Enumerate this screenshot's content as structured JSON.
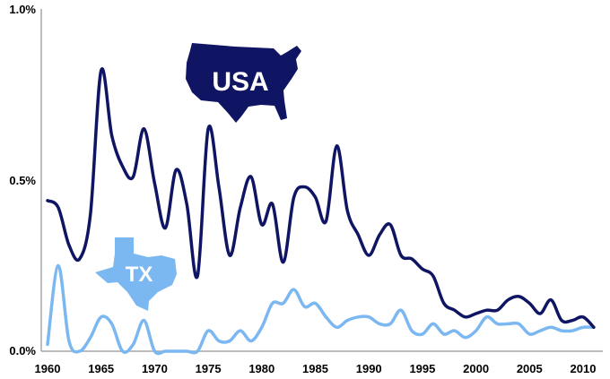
{
  "chart_data": {
    "type": "line",
    "title": "",
    "xlabel": "",
    "ylabel": "",
    "xlim": [
      1960,
      2011
    ],
    "ylim": [
      0,
      1.0
    ],
    "grid": false,
    "y_ticks": [
      {
        "value": 0,
        "label": "0.0%"
      },
      {
        "value": 0.5,
        "label": "0.5%"
      },
      {
        "value": 1.0,
        "label": "1.0%"
      }
    ],
    "x_ticks": [
      {
        "value": 1960,
        "label": "1960"
      },
      {
        "value": 1965,
        "label": "1965"
      },
      {
        "value": 1970,
        "label": "1970"
      },
      {
        "value": 1975,
        "label": "1975"
      },
      {
        "value": 1980,
        "label": "1980"
      },
      {
        "value": 1985,
        "label": "1985"
      },
      {
        "value": 1990,
        "label": "1990"
      },
      {
        "value": 1995,
        "label": "1995"
      },
      {
        "value": 2000,
        "label": "2000"
      },
      {
        "value": 2005,
        "label": "2005"
      },
      {
        "value": 2010,
        "label": "2010"
      }
    ],
    "series": [
      {
        "name": "USA",
        "color": "#0f1563",
        "x": [
          1960,
          1961,
          1962,
          1963,
          1964,
          1965,
          1966,
          1967,
          1968,
          1969,
          1970,
          1971,
          1972,
          1973,
          1974,
          1975,
          1976,
          1977,
          1978,
          1979,
          1980,
          1981,
          1982,
          1983,
          1984,
          1985,
          1986,
          1987,
          1988,
          1989,
          1990,
          1991,
          1992,
          1993,
          1994,
          1995,
          1996,
          1997,
          1998,
          1999,
          2000,
          2001,
          2002,
          2003,
          2004,
          2005,
          2006,
          2007,
          2008,
          2009,
          2010,
          2011
        ],
        "values": [
          0.44,
          0.42,
          0.31,
          0.27,
          0.4,
          0.82,
          0.63,
          0.54,
          0.51,
          0.65,
          0.49,
          0.36,
          0.53,
          0.43,
          0.22,
          0.65,
          0.48,
          0.28,
          0.42,
          0.51,
          0.37,
          0.43,
          0.26,
          0.45,
          0.48,
          0.45,
          0.38,
          0.6,
          0.41,
          0.34,
          0.28,
          0.34,
          0.37,
          0.28,
          0.27,
          0.24,
          0.22,
          0.14,
          0.12,
          0.1,
          0.11,
          0.12,
          0.12,
          0.15,
          0.16,
          0.14,
          0.11,
          0.15,
          0.09,
          0.09,
          0.1,
          0.07
        ]
      },
      {
        "name": "TX",
        "color": "#7bb7f0",
        "x": [
          1960,
          1961,
          1962,
          1963,
          1964,
          1965,
          1966,
          1967,
          1968,
          1969,
          1970,
          1971,
          1972,
          1973,
          1974,
          1975,
          1976,
          1977,
          1978,
          1979,
          1980,
          1981,
          1982,
          1983,
          1984,
          1985,
          1986,
          1987,
          1988,
          1989,
          1990,
          1991,
          1992,
          1993,
          1994,
          1995,
          1996,
          1997,
          1998,
          1999,
          2000,
          2001,
          2002,
          2003,
          2004,
          2005,
          2006,
          2007,
          2008,
          2009,
          2010,
          2011
        ],
        "values": [
          0.02,
          0.25,
          0.03,
          0.0,
          0.04,
          0.1,
          0.08,
          0.0,
          0.02,
          0.09,
          0.0,
          0.0,
          0.0,
          0.0,
          0.0,
          0.06,
          0.03,
          0.03,
          0.06,
          0.03,
          0.07,
          0.14,
          0.14,
          0.18,
          0.13,
          0.14,
          0.1,
          0.07,
          0.09,
          0.1,
          0.1,
          0.08,
          0.08,
          0.12,
          0.06,
          0.05,
          0.08,
          0.05,
          0.06,
          0.04,
          0.06,
          0.1,
          0.08,
          0.08,
          0.08,
          0.05,
          0.06,
          0.07,
          0.06,
          0.06,
          0.07,
          0.07
        ]
      }
    ],
    "annotations": [
      {
        "text": "USA",
        "shape": "usa-map",
        "color": "#0f1563"
      },
      {
        "text": "TX",
        "shape": "texas-map",
        "color": "#7bb7f0"
      }
    ]
  }
}
